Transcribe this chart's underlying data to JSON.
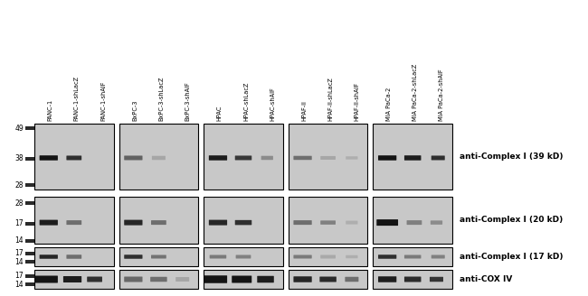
{
  "column_labels": [
    "PANC-1",
    "PANC-1-shLacZ",
    "PANC-1-shAIF",
    "BxPC-3",
    "BxPC-3-shLacZ",
    "BxPC-3-shAIF",
    "HPAC",
    "HPAC-shLacZ",
    "HPAC-shAIF",
    "HPAF-II",
    "HPAF-II-shLacZ",
    "HPAF-II-shAIF",
    "MIA PaCa-2",
    "MIA PaCa-2-shLacZ",
    "MIA PaCa-2-shAIF"
  ],
  "row_labels": [
    "anti-Complex I (39 kD)",
    "anti-Complex I (20 kD)",
    "anti-Complex I (17 kD)",
    "anti-COX IV"
  ],
  "bg_color": "#c8c8c8",
  "dark": "#141414",
  "medium": "#505050",
  "light": "#909090",
  "white_bg": "#ffffff"
}
